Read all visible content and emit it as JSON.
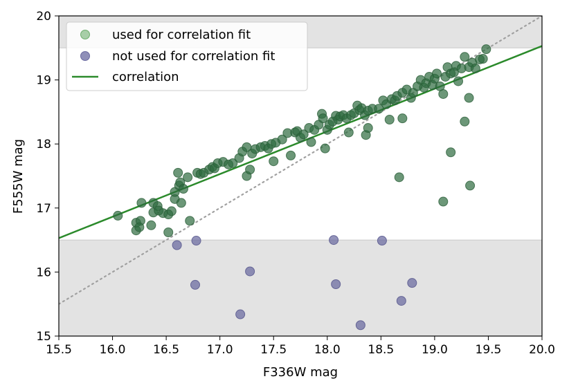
{
  "chart_data": {
    "type": "scatter",
    "xlabel": "F336W mag",
    "ylabel": "F555W mag",
    "xlim": [
      15.5,
      20.0
    ],
    "ylim": [
      15.0,
      20.0
    ],
    "xticks": [
      "15.5",
      "16.0",
      "16.5",
      "17.0",
      "17.5",
      "18.0",
      "18.5",
      "19.0",
      "19.5",
      "20.0"
    ],
    "yticks": [
      "15",
      "16",
      "17",
      "18",
      "19",
      "20"
    ],
    "grid": false,
    "legend_placement": "top-left",
    "legend": {
      "used": "used for correlation fit",
      "not_used": "not used for correlation fit",
      "line": "correlation"
    },
    "colors": {
      "used": "#2e6b3e",
      "not_used": "#6a6aa0",
      "correlation": "#2b8a2b",
      "identity": "#a0a0a0",
      "excluded_band": "#e3e3e3"
    },
    "excluded_bands": [
      {
        "y_from": 19.5,
        "y_to": 20.0
      },
      {
        "y_from": 15.0,
        "y_to": 16.5
      }
    ],
    "correlation_line": {
      "x": [
        15.5,
        20.0
      ],
      "y": [
        16.53,
        19.53
      ]
    },
    "identity_line": {
      "x": [
        15.5,
        20.0
      ],
      "y": [
        15.5,
        20.0
      ]
    },
    "series": [
      {
        "name": "used for correlation fit",
        "points": [
          [
            16.05,
            16.88
          ],
          [
            16.22,
            16.65
          ],
          [
            16.22,
            16.77
          ],
          [
            16.26,
            16.8
          ],
          [
            16.25,
            16.7
          ],
          [
            16.27,
            17.08
          ],
          [
            16.36,
            16.73
          ],
          [
            16.38,
            16.93
          ],
          [
            16.38,
            17.08
          ],
          [
            16.42,
            17.03
          ],
          [
            16.43,
            16.96
          ],
          [
            16.47,
            16.92
          ],
          [
            16.52,
            16.62
          ],
          [
            16.52,
            16.9
          ],
          [
            16.55,
            16.95
          ],
          [
            16.58,
            17.14
          ],
          [
            16.58,
            17.25
          ],
          [
            16.61,
            17.55
          ],
          [
            16.62,
            17.35
          ],
          [
            16.63,
            17.4
          ],
          [
            16.64,
            17.08
          ],
          [
            16.66,
            17.3
          ],
          [
            16.7,
            17.48
          ],
          [
            16.72,
            16.8
          ],
          [
            16.79,
            17.55
          ],
          [
            16.82,
            17.53
          ],
          [
            16.85,
            17.55
          ],
          [
            16.9,
            17.6
          ],
          [
            16.93,
            17.64
          ],
          [
            16.95,
            17.62
          ],
          [
            16.98,
            17.7
          ],
          [
            17.03,
            17.72
          ],
          [
            17.08,
            17.68
          ],
          [
            17.12,
            17.7
          ],
          [
            17.18,
            17.78
          ],
          [
            17.21,
            17.88
          ],
          [
            17.25,
            17.95
          ],
          [
            17.25,
            17.5
          ],
          [
            17.28,
            17.6
          ],
          [
            17.3,
            17.85
          ],
          [
            17.33,
            17.92
          ],
          [
            17.38,
            17.95
          ],
          [
            17.42,
            17.97
          ],
          [
            17.45,
            17.93
          ],
          [
            17.48,
            18.0
          ],
          [
            17.5,
            17.73
          ],
          [
            17.52,
            18.02
          ],
          [
            17.58,
            18.07
          ],
          [
            17.63,
            18.17
          ],
          [
            17.66,
            17.82
          ],
          [
            17.7,
            18.18
          ],
          [
            17.72,
            18.2
          ],
          [
            17.75,
            18.1
          ],
          [
            17.78,
            18.15
          ],
          [
            17.83,
            18.25
          ],
          [
            17.85,
            18.03
          ],
          [
            17.88,
            18.22
          ],
          [
            17.92,
            18.3
          ],
          [
            17.95,
            18.47
          ],
          [
            17.96,
            18.4
          ],
          [
            17.98,
            17.93
          ],
          [
            18.0,
            18.22
          ],
          [
            18.02,
            18.3
          ],
          [
            18.05,
            18.35
          ],
          [
            18.08,
            18.44
          ],
          [
            18.1,
            18.38
          ],
          [
            18.12,
            18.43
          ],
          [
            18.15,
            18.45
          ],
          [
            18.18,
            18.4
          ],
          [
            18.2,
            18.18
          ],
          [
            18.22,
            18.45
          ],
          [
            18.25,
            18.48
          ],
          [
            18.28,
            18.6
          ],
          [
            18.3,
            18.53
          ],
          [
            18.32,
            18.56
          ],
          [
            18.35,
            18.45
          ],
          [
            18.36,
            18.14
          ],
          [
            18.38,
            18.52
          ],
          [
            18.38,
            18.25
          ],
          [
            18.42,
            18.55
          ],
          [
            18.48,
            18.55
          ],
          [
            18.52,
            18.68
          ],
          [
            18.55,
            18.62
          ],
          [
            18.58,
            18.38
          ],
          [
            18.6,
            18.7
          ],
          [
            18.63,
            18.68
          ],
          [
            18.65,
            18.75
          ],
          [
            18.7,
            18.8
          ],
          [
            18.7,
            18.4
          ],
          [
            18.74,
            18.85
          ],
          [
            18.78,
            18.72
          ],
          [
            18.8,
            18.8
          ],
          [
            18.84,
            18.9
          ],
          [
            18.87,
            19.0
          ],
          [
            18.9,
            18.88
          ],
          [
            18.92,
            18.95
          ],
          [
            18.95,
            19.05
          ],
          [
            18.98,
            18.92
          ],
          [
            19.0,
            19.02
          ],
          [
            19.02,
            19.1
          ],
          [
            19.05,
            18.9
          ],
          [
            19.08,
            18.78
          ],
          [
            19.1,
            19.05
          ],
          [
            19.12,
            19.2
          ],
          [
            19.15,
            19.1
          ],
          [
            19.18,
            19.12
          ],
          [
            19.2,
            19.22
          ],
          [
            19.22,
            18.98
          ],
          [
            19.25,
            19.18
          ],
          [
            19.28,
            19.36
          ],
          [
            19.32,
            19.2
          ],
          [
            19.35,
            19.27
          ],
          [
            19.38,
            19.18
          ],
          [
            19.42,
            19.32
          ],
          [
            19.45,
            19.33
          ],
          [
            19.48,
            19.48
          ],
          [
            19.32,
            18.72
          ],
          [
            19.28,
            18.35
          ],
          [
            19.15,
            17.87
          ],
          [
            19.08,
            17.1
          ],
          [
            19.33,
            17.35
          ],
          [
            18.67,
            17.48
          ]
        ]
      },
      {
        "name": "not used for correlation fit",
        "points": [
          [
            16.6,
            16.42
          ],
          [
            16.78,
            16.49
          ],
          [
            16.77,
            15.8
          ],
          [
            17.28,
            16.01
          ],
          [
            17.19,
            15.34
          ],
          [
            18.06,
            16.5
          ],
          [
            18.08,
            15.81
          ],
          [
            18.31,
            15.17
          ],
          [
            18.51,
            16.49
          ],
          [
            18.69,
            15.55
          ],
          [
            18.79,
            15.83
          ]
        ]
      }
    ]
  }
}
